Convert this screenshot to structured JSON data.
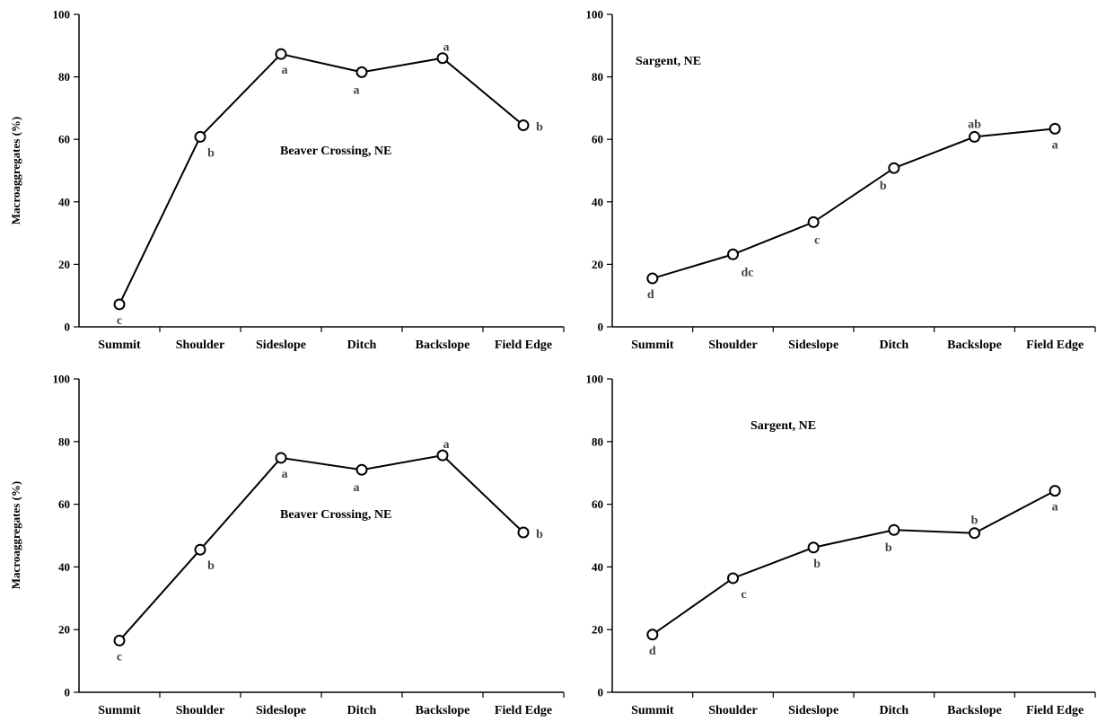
{
  "chart_data": [
    {
      "type": "line",
      "title": "Beaver Crossing, NE",
      "ylabel": "Macroaggregates (%)",
      "xlabel": "",
      "ylim": [
        0,
        100
      ],
      "yticks": [
        0,
        20,
        40,
        60,
        80,
        100
      ],
      "categories": [
        "Summit",
        "Shoulder",
        "Sideslope",
        "Ditch",
        "Backslope",
        "Field Edge"
      ],
      "values": [
        7.2,
        60.8,
        87.3,
        81.5,
        86.0,
        64.5
      ],
      "labels": [
        "c",
        "b",
        "a",
        "a",
        "a",
        "b"
      ]
    },
    {
      "type": "line",
      "title": "Sargent, NE",
      "ylabel": "",
      "xlabel": "",
      "ylim": [
        0,
        100
      ],
      "yticks": [
        0,
        20,
        40,
        60,
        80,
        100
      ],
      "categories": [
        "Summit",
        "Shoulder",
        "Sideslope",
        "Ditch",
        "Backslope",
        "Field Edge"
      ],
      "values": [
        15.5,
        23.2,
        33.5,
        50.8,
        60.8,
        63.4
      ],
      "labels": [
        "d",
        "dc",
        "c",
        "b",
        "ab",
        "a"
      ]
    },
    {
      "type": "line",
      "title": "Beaver Crossing, NE",
      "ylabel": "Macroaggregates (%)",
      "xlabel": "",
      "ylim": [
        0,
        100
      ],
      "yticks": [
        0,
        20,
        40,
        60,
        80,
        100
      ],
      "categories": [
        "Summit",
        "Shoulder",
        "Sideslope",
        "Ditch",
        "Backslope",
        "Field Edge"
      ],
      "values": [
        16.5,
        45.5,
        74.8,
        71.0,
        75.6,
        51.0
      ],
      "labels": [
        "c",
        "b",
        "a",
        "a",
        "a",
        "b"
      ]
    },
    {
      "type": "line",
      "title": "Sargent, NE",
      "ylabel": "",
      "xlabel": "",
      "ylim": [
        0,
        100
      ],
      "yticks": [
        0,
        20,
        40,
        60,
        80,
        100
      ],
      "categories": [
        "Summit",
        "Shoulder",
        "Sideslope",
        "Ditch",
        "Backslope",
        "Field Edge"
      ],
      "values": [
        18.4,
        36.4,
        46.2,
        51.8,
        50.8,
        64.3
      ],
      "labels": [
        "d",
        "c",
        "b",
        "b",
        "b",
        "a"
      ]
    }
  ]
}
